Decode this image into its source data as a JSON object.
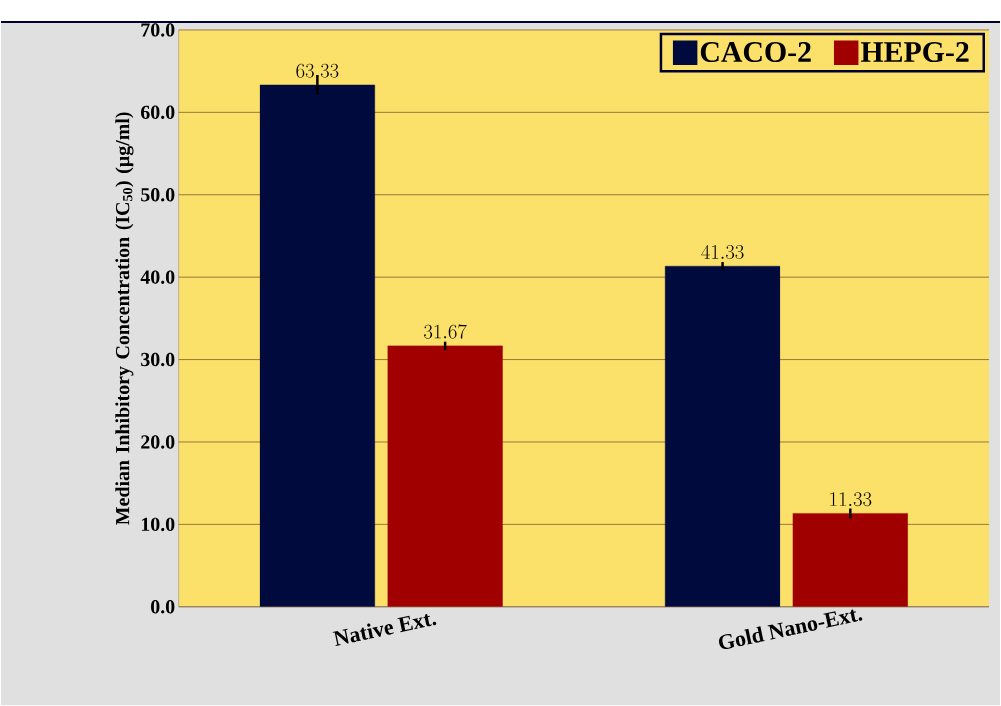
{
  "chart_data": {
    "type": "bar",
    "ylabel": "Median Inhibitory Concentration (IC$_{50}$) (µg/ml)",
    "categories": [
      "Native Ext.",
      "Gold Nano-Ext."
    ],
    "series": [
      {
        "name": "CACO-2",
        "color": "#000a3c",
        "values": [
          63.33,
          41.33
        ],
        "errors": [
          1.2,
          0.5
        ]
      },
      {
        "name": "HEPG-2",
        "color": "#a00000",
        "values": [
          31.67,
          11.33
        ],
        "errors": [
          0.5,
          0.6
        ]
      }
    ],
    "ylim": [
      0,
      70
    ],
    "yticks": [
      {
        "value": 0,
        "label": "0.0"
      },
      {
        "value": 10,
        "label": "10.0"
      },
      {
        "value": 20,
        "label": "20.0"
      },
      {
        "value": 30,
        "label": "30.0"
      },
      {
        "value": 40,
        "label": "40.0"
      },
      {
        "value": 50,
        "label": "50.0"
      },
      {
        "value": 60,
        "label": "60.0"
      },
      {
        "value": 70,
        "label": "70.0"
      }
    ],
    "grid": "y",
    "legend": "top right",
    "data_labels": true
  }
}
